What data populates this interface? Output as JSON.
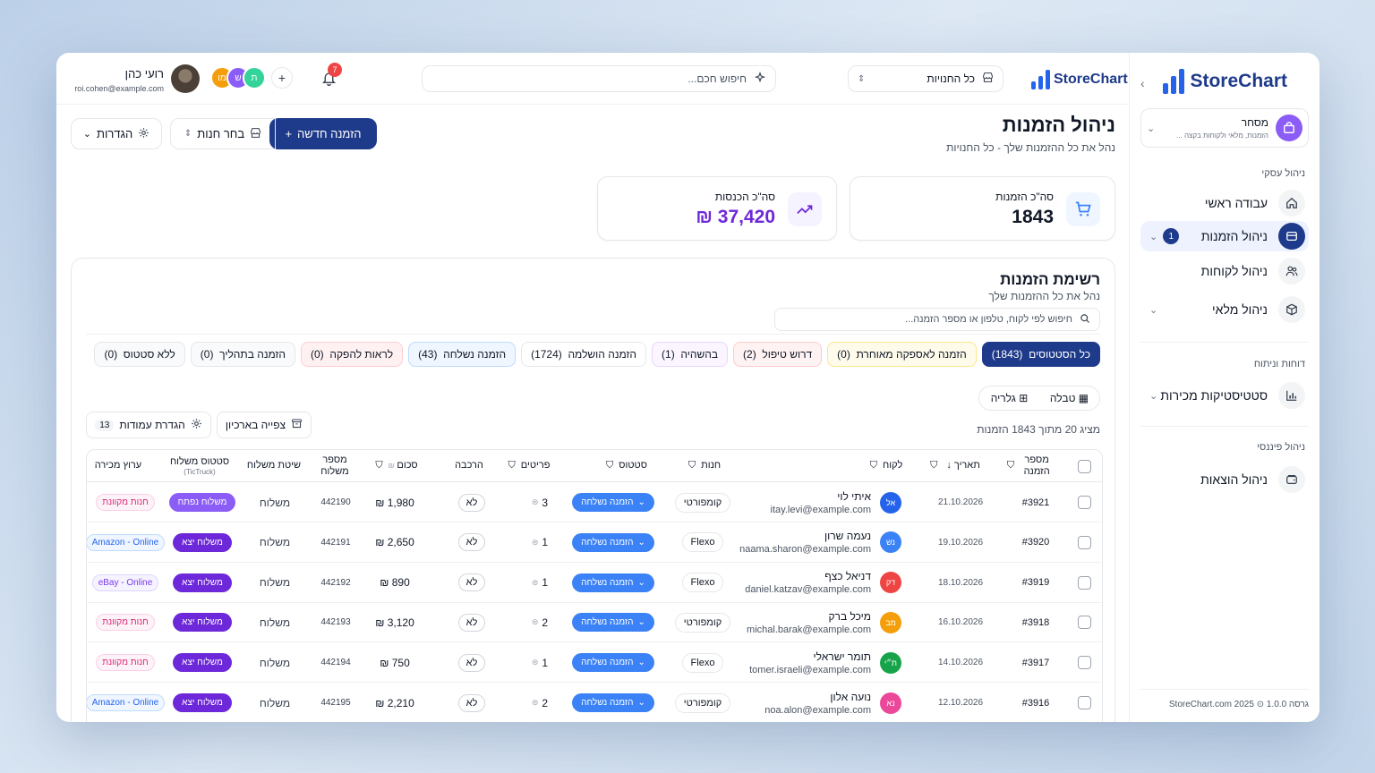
{
  "sidebar": {
    "brand": "StoreChart",
    "store": {
      "title": "מסחר",
      "subtitle": "הזמנות, מלאי ולקוחות בקצה ...",
      "icon": "shop-icon"
    },
    "sections": [
      {
        "label": "ניהול עסקי"
      },
      {
        "label": "דוחות וניתוח"
      },
      {
        "label": "ניהול פיננסי"
      }
    ],
    "items": [
      {
        "label": "עבודה ראשי",
        "icon": "home-icon"
      },
      {
        "label": "ניהול הזמנות",
        "icon": "orders-icon",
        "badge": "1",
        "active": true
      },
      {
        "label": "ניהול לקוחות",
        "icon": "users-icon"
      },
      {
        "label": "ניהול מלאי",
        "icon": "box-icon"
      },
      {
        "label": "סטטיסטיקות מכירות",
        "icon": "bar-chart-icon"
      },
      {
        "label": "ניהול הוצאות",
        "icon": "wallet-icon"
      }
    ],
    "footer_version": "גרסה 1.0.0",
    "footer_site": "StoreChart.com 2025"
  },
  "topbar": {
    "brand": "StoreChart",
    "store_select": "כל החנויות",
    "search_placeholder": "חיפוש חכם...",
    "notifications": "7",
    "avatars": [
      {
        "initials": "מו",
        "color": "#f59e0b"
      },
      {
        "initials": "ש",
        "color": "#8b5cf6"
      },
      {
        "initials": "ת",
        "color": "#10b981"
      }
    ],
    "user_name": "רועי כהן",
    "user_email": "roi.cohen@example.com"
  },
  "page": {
    "title": "ניהול הזמנות",
    "subtitle": "נהל את כל ההזמנות שלך - כל החנויות",
    "new_order": "הזמנה חדשה",
    "choose_store": "בחר חנות",
    "settings": "הגדרות"
  },
  "stats": {
    "orders_label": "סה\"כ הזמנות",
    "orders_value": "1843",
    "revenue_label": "סה\"כ הכנסות",
    "revenue_value": "₪ 37,420",
    "accent_orders": "#eff6ff",
    "accent_revenue": "#f5f3ff"
  },
  "list": {
    "title": "רשימת הזמנות",
    "subtitle": "נהל את כל ההזמנות שלך",
    "search_placeholder": "חיפוש לפי לקוח, טלפון או מספר הזמנה...",
    "chips": [
      {
        "label": "כל הסטטוסים",
        "count": "(1843)",
        "style": "active"
      },
      {
        "label": "הזמנה לאספקה מאוחרת",
        "count": "(0)",
        "style": "amber"
      },
      {
        "label": "דרוש טיפול",
        "count": "(2)",
        "style": "red"
      },
      {
        "label": "בהשהיה",
        "count": "(1)",
        "style": "purple"
      },
      {
        "label": "הזמנה הושלמה",
        "count": "(1724)",
        "style": "gray"
      },
      {
        "label": "הזמנה נשלחה",
        "count": "(43)",
        "style": "blue"
      },
      {
        "label": "לראות להפקה",
        "count": "(0)",
        "style": "rose"
      },
      {
        "label": "הזמנה בתהליך",
        "count": "(0)",
        "style": "gray"
      },
      {
        "label": "ללא סטטוס",
        "count": "(0)",
        "style": "gray"
      }
    ],
    "view_table": "טבלה",
    "view_gallery": "גלריה",
    "showing": "מציג 20 מתוך 1843 הזמנות",
    "archive_view": "צפייה בארכיון",
    "columns_settings": "הגדרת עמודות",
    "columns_count": "13"
  },
  "table": {
    "headers": {
      "order_no": "מספר הזמנה",
      "date": "תאריך",
      "customer": "לקוח",
      "store": "חנות",
      "status": "סטטוס",
      "items": "פריטים",
      "assembly": "הרכבה",
      "total": "סכום",
      "shipment_no": "מספר משלוח",
      "shipping_method": "שיטת משלוח",
      "shipping_status": "סטטוס משלוח",
      "shipping_status_sub": "(TicTruck)",
      "sales_channel": "ערוץ מכירה"
    },
    "rows": [
      {
        "order": "#3921",
        "date": "21.10.2026",
        "initials": "אל",
        "avatar_color": "#2563eb",
        "name": "איתי לוי",
        "email": "itay.levi@example.com",
        "store": "קומפורטי",
        "status": "הזמנה נשלחה",
        "items": "3",
        "assembly": "לא",
        "total": "₪ 1,980",
        "shipment": "442190",
        "method": "משלוח",
        "ship_status": "משלוח נפתח",
        "ship_alt": true,
        "channel": "חנות מקוונת",
        "channel_style": "rose"
      },
      {
        "order": "#3920",
        "date": "19.10.2026",
        "initials": "נש",
        "avatar_color": "#3b82f6",
        "name": "נעמה שרון",
        "email": "naama.sharon@example.com",
        "store": "Flexo",
        "status": "הזמנה נשלחה",
        "items": "1",
        "assembly": "לא",
        "total": "₪ 2,650",
        "shipment": "442191",
        "method": "משלוח",
        "ship_status": "משלוח יצא",
        "ship_alt": false,
        "channel": "Amazon - Online",
        "channel_style": "blue"
      },
      {
        "order": "#3919",
        "date": "18.10.2026",
        "initials": "דק",
        "avatar_color": "#ef4444",
        "name": "דניאל כצף",
        "email": "daniel.katzav@example.com",
        "store": "Flexo",
        "status": "הזמנה נשלחה",
        "items": "1",
        "assembly": "לא",
        "total": "₪ 890",
        "shipment": "442192",
        "method": "משלוח",
        "ship_status": "משלוח יצא",
        "ship_alt": false,
        "channel": "eBay - Online",
        "channel_style": "purple"
      },
      {
        "order": "#3918",
        "date": "16.10.2026",
        "initials": "מב",
        "avatar_color": "#f59e0b",
        "name": "מיכל ברק",
        "email": "michal.barak@example.com",
        "store": "קומפורטי",
        "status": "הזמנה נשלחה",
        "items": "2",
        "assembly": "לא",
        "total": "₪ 3,120",
        "shipment": "442193",
        "method": "משלוח",
        "ship_status": "משלוח יצא",
        "ship_alt": false,
        "channel": "חנות מקוונת",
        "channel_style": "rose"
      },
      {
        "order": "#3917",
        "date": "14.10.2026",
        "initials": "ת״י",
        "avatar_color": "#16a34a",
        "name": "תומר ישראלי",
        "email": "tomer.israeli@example.com",
        "store": "Flexo",
        "status": "הזמנה נשלחה",
        "items": "1",
        "assembly": "לא",
        "total": "₪ 750",
        "shipment": "442194",
        "method": "משלוח",
        "ship_status": "משלוח יצא",
        "ship_alt": false,
        "channel": "חנות מקוונת",
        "channel_style": "rose"
      },
      {
        "order": "#3916",
        "date": "12.10.2026",
        "initials": "נא",
        "avatar_color": "#ec4899",
        "name": "נועה אלון",
        "email": "noa.alon@example.com",
        "store": "קומפורטי",
        "status": "הזמנה נשלחה",
        "items": "2",
        "assembly": "לא",
        "total": "₪ 2,210",
        "shipment": "442195",
        "method": "משלוח",
        "ship_status": "משלוח יצא",
        "ship_alt": false,
        "channel": "Amazon - Online",
        "channel_style": "blue"
      }
    ]
  },
  "colors": {
    "primary": "#1e3a8a",
    "revenue": "#6d28d9",
    "status_blue": "#3b82f6",
    "ship_purple": "#6d28d9"
  }
}
